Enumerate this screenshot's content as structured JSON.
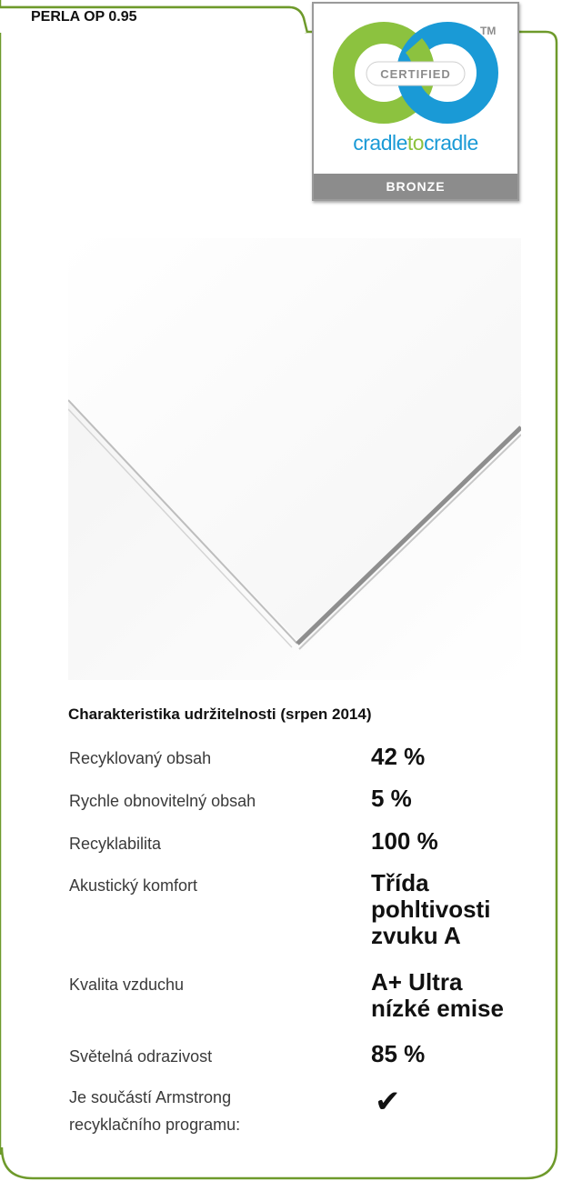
{
  "product": {
    "name": "PERLA OP 0.95"
  },
  "certification": {
    "certified_text": "CERTIFIED",
    "brand_part1": "cradle",
    "brand_part2": "to",
    "brand_part3": "cradle",
    "trademark": "TM",
    "level": "BRONZE",
    "colors": {
      "green": "#8cc23f",
      "blue": "#1a9ad6",
      "level_bg": "#8c8c8c"
    }
  },
  "frame": {
    "colors": {
      "border": "#6e9a2b"
    }
  },
  "sustainability": {
    "title": "Charakteristika udržitelnosti (srpen 2014)",
    "properties": [
      {
        "label": "Recyklovaný obsah",
        "value_lines": [
          "42 %"
        ]
      },
      {
        "label": "Rychle obnovitelný obsah",
        "value_lines": [
          "5 %"
        ]
      },
      {
        "label": "Recyklabilita",
        "value_lines": [
          "100 %"
        ]
      },
      {
        "label": "Akustický komfort",
        "value_lines": [
          "Třída",
          "pohltivosti",
          "zvuku A"
        ]
      },
      {
        "label": "Kvalita vzduchu",
        "value_lines": [
          "A+ Ultra",
          "nízké emise"
        ]
      },
      {
        "label": "Světelná odrazivost",
        "value_lines": [
          "85 %"
        ]
      }
    ],
    "recycling": {
      "label_lines": [
        "Je součástí Armstrong",
        "recyklačního programu:"
      ],
      "check": "✔"
    }
  }
}
